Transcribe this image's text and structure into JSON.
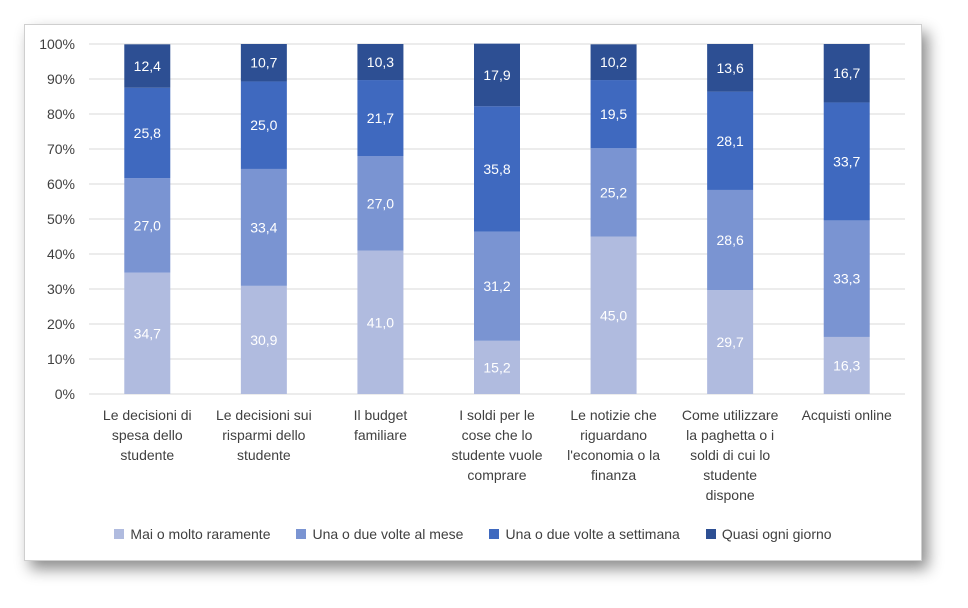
{
  "chart_data": {
    "type": "bar",
    "stacked": true,
    "title": "",
    "xlabel": "",
    "ylabel": "",
    "ylim": [
      0,
      100
    ],
    "y_ticks": [
      "0%",
      "10%",
      "20%",
      "30%",
      "40%",
      "50%",
      "60%",
      "70%",
      "80%",
      "90%",
      "100%"
    ],
    "categories": [
      "Le decisioni di spesa dello studente",
      "Le decisioni sui risparmi dello studente",
      "Il budget familiare",
      "I soldi per le cose che lo studente vuole comprare",
      "Le notizie che riguardano l'economia o la finanza",
      "Come utilizzare la paghetta o i soldi di cui lo studente dispone",
      "Acquisti online"
    ],
    "category_lines": [
      "Le decisioni di\nspesa dello\nstudente",
      "Le decisioni sui\nrisparmi dello\nstudente",
      "Il budget\nfamiliare",
      "I soldi per le\ncose che lo\nstudente vuole\ncomprare",
      "Le notizie che\nriguardano\nl'economia o la\nfinanza",
      "Come utilizzare\nla paghetta o i\nsoldi di cui lo\nstudente\ndispone",
      "Acquisti online"
    ],
    "series": [
      {
        "name": "Mai o molto raramente",
        "color": "#b0bbdf",
        "label_color": "#ffffff",
        "values": [
          34.7,
          30.9,
          41.0,
          15.2,
          45.0,
          29.7,
          16.3
        ],
        "labels": [
          "34,7",
          "30,9",
          "41,0",
          "15,2",
          "45,0",
          "29,7",
          "16,3"
        ]
      },
      {
        "name": "Una o due volte al mese",
        "color": "#7a94d2",
        "label_color": "#ffffff",
        "values": [
          27.0,
          33.4,
          27.0,
          31.2,
          25.2,
          28.6,
          33.3
        ],
        "labels": [
          "27,0",
          "33,4",
          "27,0",
          "31,2",
          "25,2",
          "28,6",
          "33,3"
        ]
      },
      {
        "name": "Una o due volte a settimana",
        "color": "#3f69bf",
        "label_color": "#ffffff",
        "values": [
          25.8,
          25.0,
          21.7,
          35.8,
          19.5,
          28.1,
          33.7
        ],
        "labels": [
          "25,8",
          "25,0",
          "21,7",
          "35,8",
          "19,5",
          "28,1",
          "33,7"
        ]
      },
      {
        "name": "Quasi ogni giorno",
        "color": "#2d4f93",
        "label_color": "#ffffff",
        "values": [
          12.4,
          10.7,
          10.3,
          17.9,
          10.2,
          13.6,
          16.7
        ],
        "labels": [
          "12,4",
          "10,7",
          "10,3",
          "17,9",
          "10,2",
          "13,6",
          "16,7"
        ]
      }
    ],
    "legend": "bottom",
    "grid": true
  }
}
